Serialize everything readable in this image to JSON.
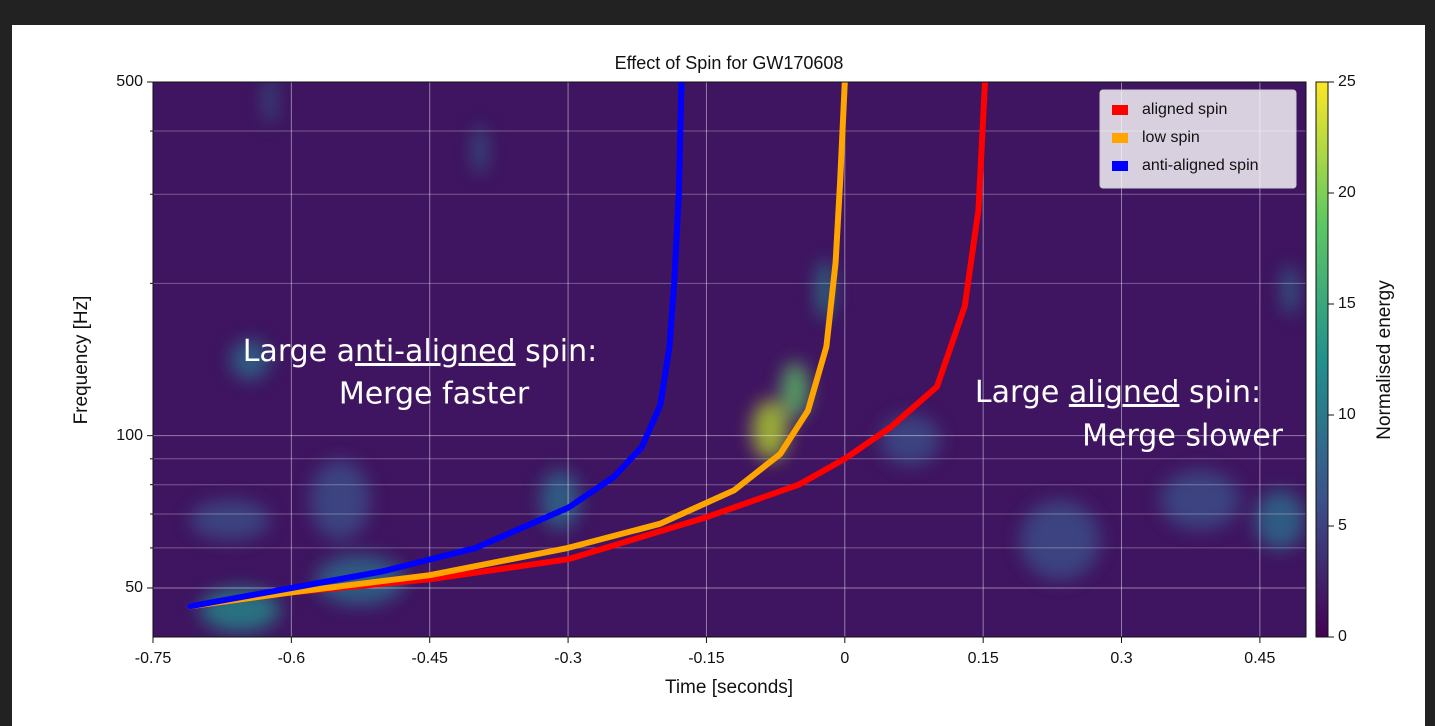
{
  "chart_data": {
    "type": "line",
    "title": "Effect of Spin for GW170608",
    "x_label": "Time [seconds]",
    "y_label": "Frequency [Hz]",
    "xlim": [
      -0.75,
      0.5
    ],
    "xticks": [
      -0.75,
      -0.6,
      -0.45,
      -0.3,
      -0.15,
      0,
      0.15,
      0.3,
      0.45
    ],
    "ylim": [
      40,
      500
    ],
    "ylog": true,
    "yticks": [
      50,
      100,
      500
    ],
    "y_minor_ticks": [
      60,
      70,
      80,
      90,
      200,
      300,
      400
    ],
    "grid": true,
    "legend": "upper right",
    "series": [
      {
        "name": "aligned spin",
        "color": "#ff0000",
        "x": [
          -0.71,
          -0.6,
          -0.45,
          -0.3,
          -0.15,
          -0.05,
          0,
          0.05,
          0.1,
          0.13,
          0.145,
          0.152
        ],
        "values": [
          46,
          49,
          52,
          57,
          69,
          80,
          90,
          104,
          125,
          180,
          280,
          500
        ]
      },
      {
        "name": "low spin",
        "color": "#ffa500",
        "x": [
          -0.71,
          -0.6,
          -0.45,
          -0.3,
          -0.2,
          -0.12,
          -0.07,
          -0.04,
          -0.02,
          -0.01,
          -0.005,
          0
        ],
        "values": [
          46,
          49,
          53,
          60,
          67,
          78,
          92,
          112,
          150,
          220,
          320,
          500
        ]
      },
      {
        "name": "anti-aligned spin",
        "color": "#0000ff",
        "x": [
          -0.71,
          -0.6,
          -0.5,
          -0.4,
          -0.3,
          -0.25,
          -0.22,
          -0.2,
          -0.19,
          -0.185,
          -0.18,
          -0.177
        ],
        "values": [
          46,
          50,
          54,
          60,
          72,
          83,
          95,
          115,
          150,
          200,
          300,
          500
        ]
      }
    ],
    "colorbar": {
      "label": "Normalised energy",
      "lim": [
        0,
        25
      ],
      "ticks": [
        0,
        5,
        10,
        15,
        20,
        25
      ],
      "colors": [
        "#440154",
        "#3b528b",
        "#21918c",
        "#5ec962",
        "#fde725"
      ]
    },
    "annotations": [
      {
        "before": "Large a",
        "emphasis": "nti-aligned",
        "after": " spin:",
        "line2": "Merge faster"
      },
      {
        "before": "Large ",
        "emphasis": "aligned",
        "after": " spin:",
        "line2": "Merge slower"
      }
    ]
  }
}
